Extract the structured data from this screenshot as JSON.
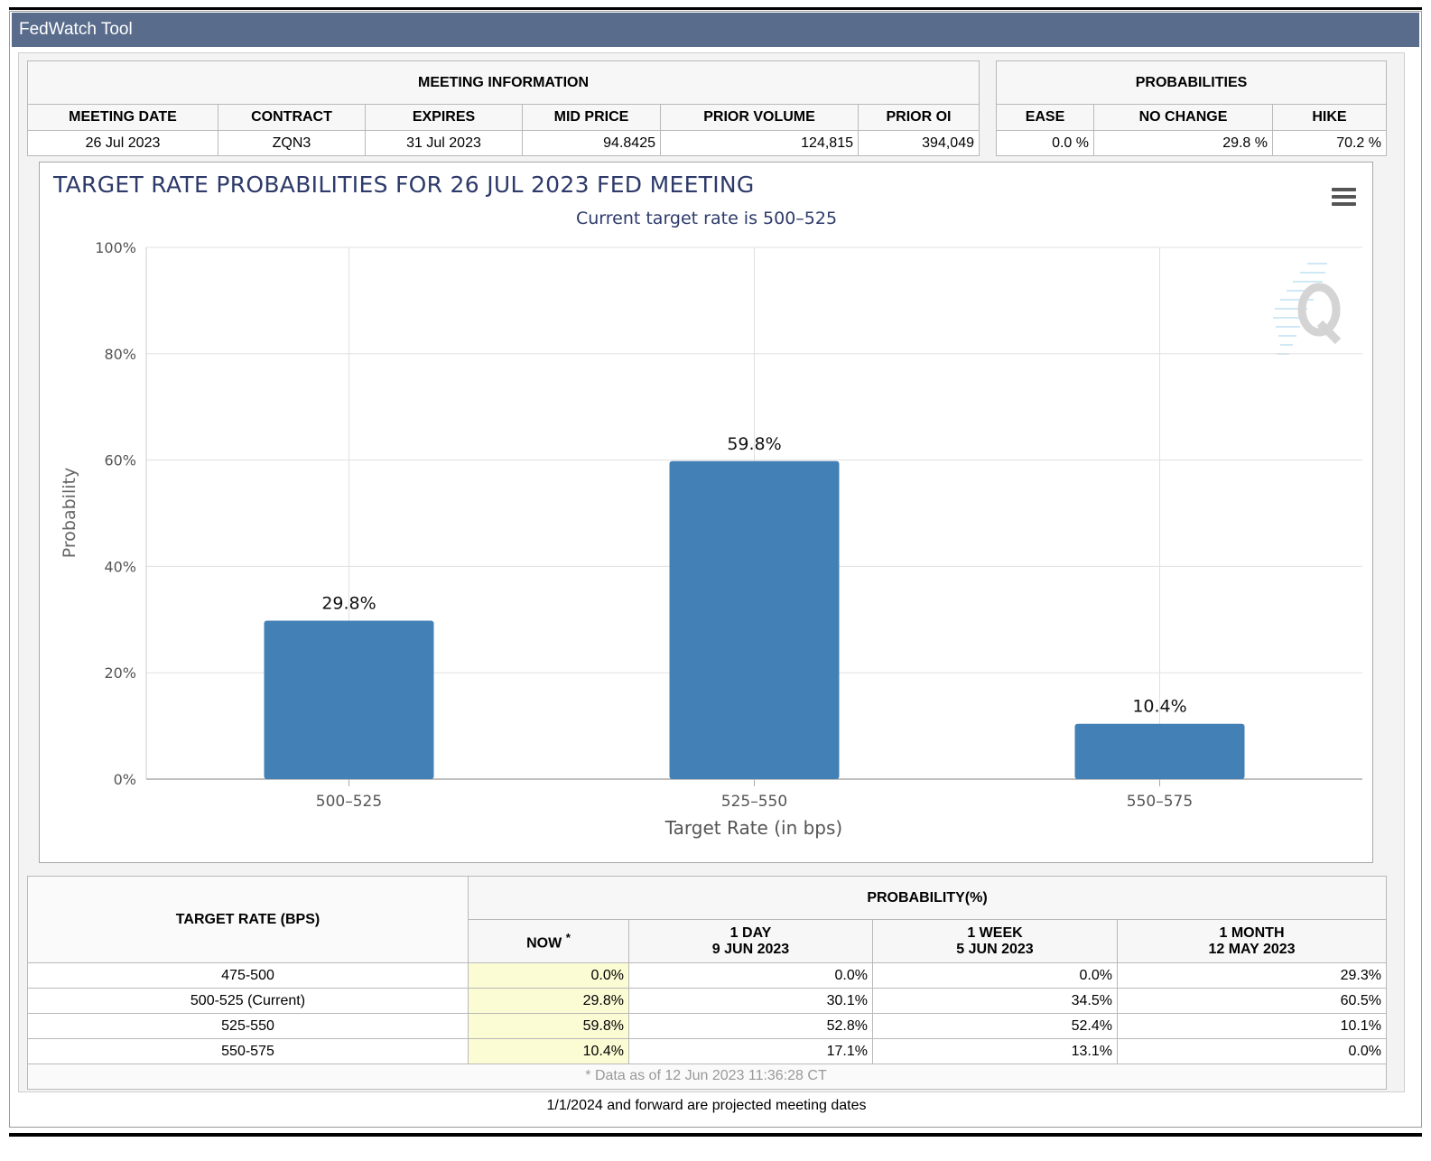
{
  "app": {
    "title": "FedWatch Tool"
  },
  "meeting_info": {
    "header": "MEETING INFORMATION",
    "columns": [
      "MEETING DATE",
      "CONTRACT",
      "EXPIRES",
      "MID PRICE",
      "PRIOR VOLUME",
      "PRIOR OI"
    ],
    "row": [
      "26 Jul 2023",
      "ZQN3",
      "31 Jul 2023",
      "94.8425",
      "124,815",
      "394,049"
    ]
  },
  "probabilities": {
    "header": "PROBABILITIES",
    "columns": [
      "EASE",
      "NO CHANGE",
      "HIKE"
    ],
    "row": [
      "0.0 %",
      "29.8 %",
      "70.2 %"
    ]
  },
  "chart_data": {
    "type": "bar",
    "title": "TARGET RATE PROBABILITIES FOR 26 JUL 2023 FED MEETING",
    "subtitle": "Current target rate is 500–525",
    "categories": [
      "500–525",
      "525–550",
      "550–575"
    ],
    "values": [
      29.8,
      59.8,
      10.4
    ],
    "data_labels": [
      "29.8%",
      "59.8%",
      "10.4%"
    ],
    "xlabel": "Target Rate (in bps)",
    "ylabel": "Probability",
    "ylim": [
      0,
      100
    ],
    "yticks": [
      0,
      20,
      40,
      60,
      80,
      100
    ],
    "ytick_labels": [
      "0%",
      "20%",
      "40%",
      "60%",
      "80%",
      "100%"
    ],
    "grid": true,
    "bar_color": "#4380b5"
  },
  "history": {
    "row_header": "TARGET RATE (BPS)",
    "prob_header": "PROBABILITY(%)",
    "columns": [
      {
        "line1": "NOW",
        "line2": "",
        "marker": "*"
      },
      {
        "line1": "1 DAY",
        "line2": "9 JUN 2023"
      },
      {
        "line1": "1 WEEK",
        "line2": "5 JUN 2023"
      },
      {
        "line1": "1 MONTH",
        "line2": "12 MAY 2023"
      }
    ],
    "rows": [
      {
        "rate": "475-500",
        "values": [
          "0.0%",
          "0.0%",
          "0.0%",
          "29.3%"
        ]
      },
      {
        "rate": "500-525 (Current)",
        "values": [
          "29.8%",
          "30.1%",
          "34.5%",
          "60.5%"
        ]
      },
      {
        "rate": "525-550",
        "values": [
          "59.8%",
          "52.8%",
          "52.4%",
          "10.1%"
        ]
      },
      {
        "rate": "550-575",
        "values": [
          "10.4%",
          "17.1%",
          "13.1%",
          "0.0%"
        ]
      }
    ],
    "footnote": "* Data as of 12 Jun 2023 11:36:28 CT",
    "projected_note": "1/1/2024 and forward are projected meeting dates"
  },
  "colors": {
    "titlebar": "#596c8c",
    "title_text": "#2d3a6a",
    "now_highlight": "#fbfbd4"
  }
}
